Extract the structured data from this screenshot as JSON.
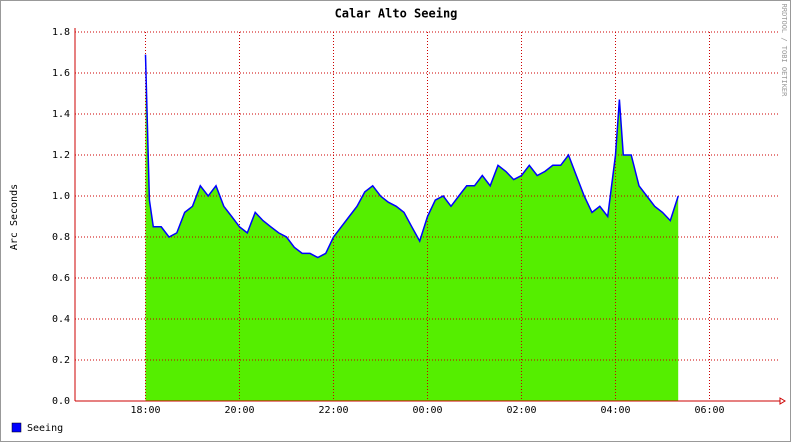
{
  "chart_data": {
    "type": "area",
    "title": "Calar Alto Seeing",
    "y_label": "Arc Seconds",
    "side_note": "RRDTOOL / TOBI OETIKER",
    "xlim": [
      "16:30",
      "07:30"
    ],
    "xticks": [
      "18:00",
      "20:00",
      "22:00",
      "00:00",
      "02:00",
      "04:00",
      "06:00"
    ],
    "ylim": [
      0,
      1.8
    ],
    "yticks": [
      {
        "value": 0,
        "label": "0.0"
      },
      0.2,
      0.4,
      0.6,
      0.8,
      {
        "value": 1,
        "label": "1.0"
      },
      1.2,
      1.4,
      1.6,
      1.8
    ],
    "grid": true,
    "x": [
      "18:00",
      "18:05",
      "18:10",
      "18:20",
      "18:30",
      "18:40",
      "18:50",
      "19:00",
      "19:10",
      "19:20",
      "19:30",
      "19:40",
      "19:50",
      "20:00",
      "20:10",
      "20:20",
      "20:30",
      "20:40",
      "20:50",
      "21:00",
      "21:10",
      "21:20",
      "21:30",
      "21:40",
      "21:50",
      "22:00",
      "22:10",
      "22:20",
      "22:30",
      "22:40",
      "22:50",
      "23:00",
      "23:10",
      "23:20",
      "23:30",
      "23:40",
      "23:50",
      "00:00",
      "00:10",
      "00:20",
      "00:30",
      "00:40",
      "00:50",
      "01:00",
      "01:10",
      "01:20",
      "01:30",
      "01:40",
      "01:50",
      "02:00",
      "02:10",
      "02:20",
      "02:30",
      "02:40",
      "02:50",
      "03:00",
      "03:10",
      "03:20",
      "03:30",
      "03:40",
      "03:50",
      "04:00",
      "04:05",
      "04:10",
      "04:20",
      "04:30",
      "04:40",
      "04:50",
      "05:00",
      "05:10",
      "05:20"
    ],
    "series": [
      {
        "name": "Seeing",
        "color": "#0000ff",
        "fill": "#55ee00",
        "values": [
          1.69,
          0.98,
          0.85,
          0.85,
          0.8,
          0.82,
          0.92,
          0.95,
          1.05,
          1.0,
          1.05,
          0.95,
          0.9,
          0.85,
          0.82,
          0.92,
          0.88,
          0.85,
          0.82,
          0.8,
          0.75,
          0.72,
          0.72,
          0.7,
          0.72,
          0.8,
          0.85,
          0.9,
          0.95,
          1.02,
          1.05,
          1.0,
          0.97,
          0.95,
          0.92,
          0.85,
          0.78,
          0.9,
          0.98,
          1.0,
          0.95,
          1.0,
          1.05,
          1.05,
          1.1,
          1.05,
          1.15,
          1.12,
          1.08,
          1.1,
          1.15,
          1.1,
          1.12,
          1.15,
          1.15,
          1.2,
          1.1,
          1.0,
          0.92,
          0.95,
          0.9,
          1.2,
          1.47,
          1.2,
          1.2,
          1.05,
          1.0,
          0.95,
          0.92,
          0.88,
          1.0
        ]
      }
    ]
  }
}
